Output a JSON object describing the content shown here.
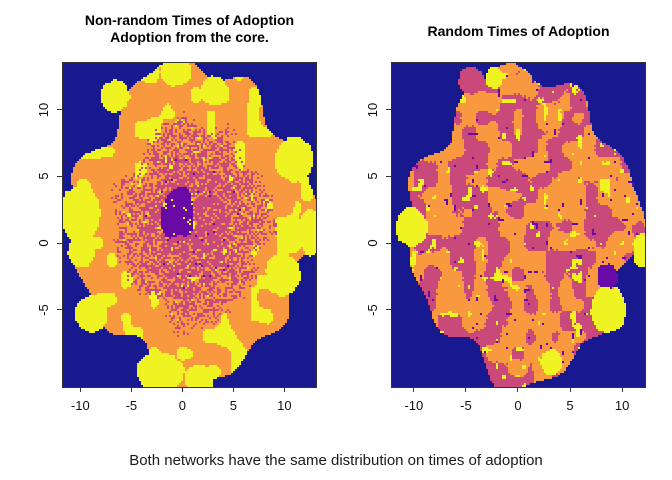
{
  "page": {
    "caption": "Both networks have the same distribution on times of adoption",
    "background_color": "#ffffff"
  },
  "palette": {
    "background": "#18188F",
    "purple": "#6A0AA6",
    "magenta": "#C9497B",
    "orange": "#F8993F",
    "yellow": "#EFF321"
  },
  "chart_data": [
    {
      "type": "heatmap",
      "panel": "left",
      "title_lines": [
        "Non-random Times of Adoption",
        "Adoption from the core."
      ],
      "pattern": "core",
      "xlim": [
        -11.7,
        13.1
      ],
      "ylim": [
        -10.8,
        13.5
      ],
      "x_ticks": [
        "-10",
        "-5",
        "0",
        "5",
        "10"
      ],
      "x_tick_values": [
        -10,
        -5,
        0,
        5,
        10
      ],
      "y_ticks": [
        "-5",
        "0",
        "5",
        "10"
      ],
      "y_tick_values": [
        -5,
        0,
        5,
        10
      ],
      "grid": false,
      "legend": false,
      "seed": 7,
      "blob": {
        "cx": 1.0,
        "cy": 1.5,
        "rx": 11.4,
        "ry": 11.6
      },
      "structure": "Dark navy background outside a large irregular elliptical network blob; blob rim is orange (late adopters) with large yellow patches (latest adopters); interior is a dense speckled magenta/orange mix with scattered yellow hotspots; earliest adopters form a dark purple cluster concentrated at the core near (0,2)",
      "edge_blobs": [
        {
          "x": -10.0,
          "y": 2.2,
          "rx": 1.9,
          "ry": 2.1,
          "color": "yellow"
        },
        {
          "x": -9.9,
          "y": -0.6,
          "rx": 1.3,
          "ry": 1.3,
          "color": "yellow"
        },
        {
          "x": 10.9,
          "y": 6.3,
          "rx": 1.9,
          "ry": 1.7,
          "color": "yellow"
        },
        {
          "x": 9.8,
          "y": -2.4,
          "rx": 1.7,
          "ry": 1.6,
          "color": "yellow"
        },
        {
          "x": -2.2,
          "y": -9.7,
          "rx": 2.3,
          "ry": 1.5,
          "color": "yellow"
        },
        {
          "x": 1.6,
          "y": -10.2,
          "rx": 1.4,
          "ry": 1.1,
          "color": "yellow"
        },
        {
          "x": -0.6,
          "y": 12.9,
          "rx": 1.6,
          "ry": 1.1,
          "color": "yellow"
        },
        {
          "x": -6.6,
          "y": 11.0,
          "rx": 1.4,
          "ry": 1.2,
          "color": "yellow"
        },
        {
          "x": 3.1,
          "y": 11.4,
          "rx": 1.4,
          "ry": 1.1,
          "color": "yellow"
        },
        {
          "x": -8.9,
          "y": -5.3,
          "rx": 1.6,
          "ry": 1.4,
          "color": "yellow"
        },
        {
          "x": 12.6,
          "y": 0.8,
          "rx": 1.3,
          "ry": 1.7,
          "color": "yellow"
        }
      ]
    },
    {
      "type": "heatmap",
      "panel": "right",
      "title_lines": [
        "Random Times of Adoption"
      ],
      "pattern": "random",
      "xlim": [
        -12.1,
        12.2
      ],
      "ylim": [
        -10.8,
        13.5
      ],
      "x_ticks": [
        "-10",
        "-5",
        "0",
        "5",
        "10"
      ],
      "x_tick_values": [
        -10,
        -5,
        0,
        5,
        10
      ],
      "y_ticks": [
        "-5",
        "0",
        "5",
        "10"
      ],
      "y_tick_values": [
        -5,
        0,
        5,
        10
      ],
      "grid": false,
      "legend": false,
      "seed": 21,
      "blob": {
        "cx": 0.5,
        "cy": 1.2,
        "rx": 10.6,
        "ry": 11.4
      },
      "structure": "Dark navy background outside a scalloped elliptical network blob; interior is a uniform random patchwork of orange and magenta regions with scattered medium yellow blobs and small dark purple spots, with no spatial gradient",
      "edge_blobs": [
        {
          "x": -10.2,
          "y": 1.2,
          "rx": 1.5,
          "ry": 1.5,
          "color": "yellow"
        },
        {
          "x": 8.7,
          "y": -5.0,
          "rx": 1.7,
          "ry": 1.7,
          "color": "yellow"
        },
        {
          "x": 8.6,
          "y": -2.5,
          "rx": 1.0,
          "ry": 1.0,
          "color": "purple"
        },
        {
          "x": 12.0,
          "y": -0.6,
          "rx": 1.0,
          "ry": 1.3,
          "color": "yellow"
        },
        {
          "x": 3.2,
          "y": -9.0,
          "rx": 1.0,
          "ry": 1.0,
          "color": "yellow"
        },
        {
          "x": -4.5,
          "y": 12.2,
          "rx": 1.2,
          "ry": 1.0,
          "color": "magenta"
        },
        {
          "x": -2.3,
          "y": 12.4,
          "rx": 0.8,
          "ry": 0.8,
          "color": "yellow"
        }
      ]
    }
  ]
}
